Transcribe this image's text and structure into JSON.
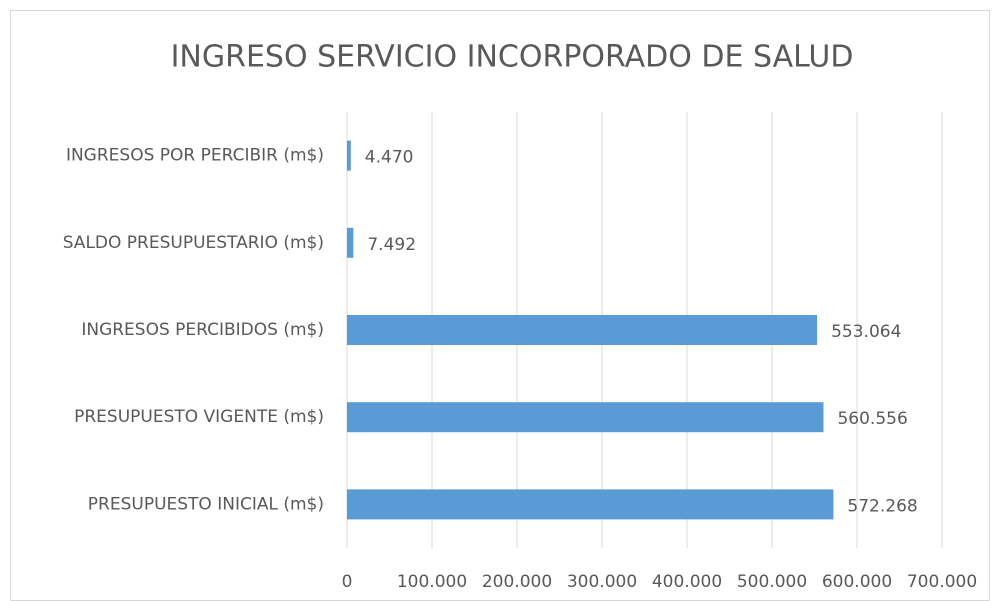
{
  "chart_data": {
    "type": "bar",
    "orientation": "horizontal",
    "title": "INGRESO SERVICIO INCORPORADO DE SALUD",
    "categories": [
      "INGRESOS POR PERCIBIR (m$)",
      "SALDO PRESUPUESTARIO (m$)",
      "INGRESOS PERCIBIDOS (m$)",
      "PRESUPUESTO VIGENTE (m$)",
      "PRESUPUESTO INICIAL (m$)"
    ],
    "values": [
      4470,
      7492,
      553064,
      560556,
      572268
    ],
    "value_labels": [
      "4.470",
      "7.492",
      "553.064",
      "560.556",
      "572.268"
    ],
    "color": "#5b9bd5",
    "xlim": [
      0,
      700000
    ],
    "xticks": [
      0,
      {
        "value": 100000,
        "label": "100.000"
      },
      {
        "value": 200000,
        "label": "200.000"
      },
      {
        "value": 300000,
        "label": "300.000"
      },
      {
        "value": 400000,
        "label": "400.000"
      },
      {
        "value": 500000,
        "label": "500.000"
      },
      {
        "value": 600000,
        "label": "600.000"
      },
      {
        "value": 700000,
        "label": "700.000"
      }
    ],
    "grid": true
  }
}
